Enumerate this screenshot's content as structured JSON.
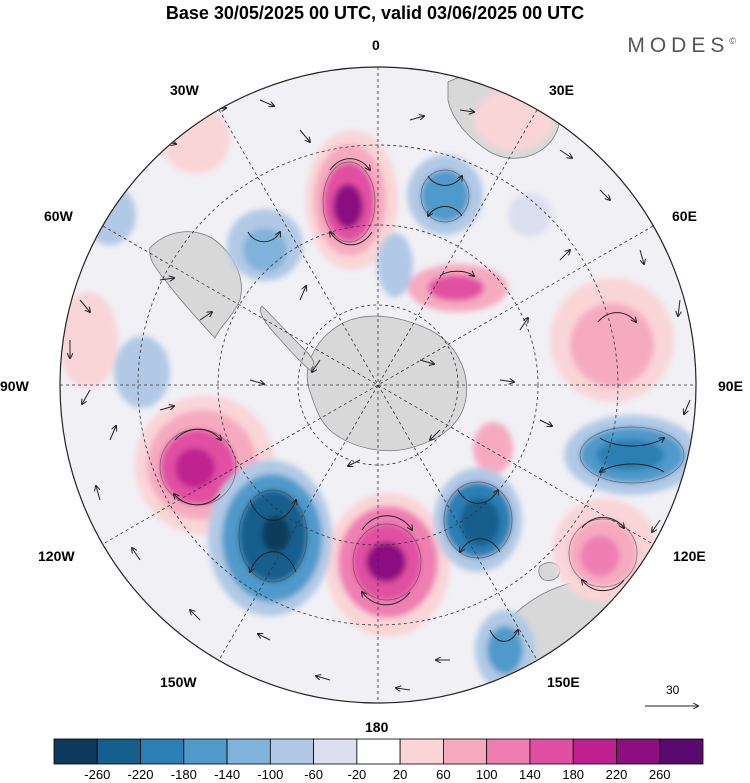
{
  "title": "Base 30/05/2025 00 UTC, valid 03/06/2025 00 UTC",
  "brand": "MODES",
  "brand_mark": "©",
  "longitude_labels": {
    "lon_0": "0",
    "lon_30E": "30E",
    "lon_60E": "60E",
    "lon_90E": "90E",
    "lon_120E": "120E",
    "lon_150E": "150E",
    "lon_180": "180",
    "lon_150W": "150W",
    "lon_120W": "120W",
    "lon_90W": "90W",
    "lon_60W": "60W",
    "lon_30W": "30W"
  },
  "reference_vector": {
    "value": "30"
  },
  "colorbar": {
    "labels": [
      "-260",
      "-220",
      "-180",
      "-140",
      "-100",
      "-60",
      "-20",
      "20",
      "60",
      "100",
      "140",
      "180",
      "220",
      "260"
    ],
    "colors": [
      "#0d3a5a",
      "#155f8d",
      "#2a7fb5",
      "#4f9acb",
      "#7fb3da",
      "#b1c9e6",
      "#dcdff0",
      "#ffffff",
      "#f9d5d8",
      "#f6aac0",
      "#ef7fb2",
      "#e14fa3",
      "#c0208f",
      "#8c0f80",
      "#5a0a6e"
    ]
  },
  "colors": {
    "land": "#d3d3d3",
    "coastline": "#707070",
    "graticule": "#333333"
  }
}
